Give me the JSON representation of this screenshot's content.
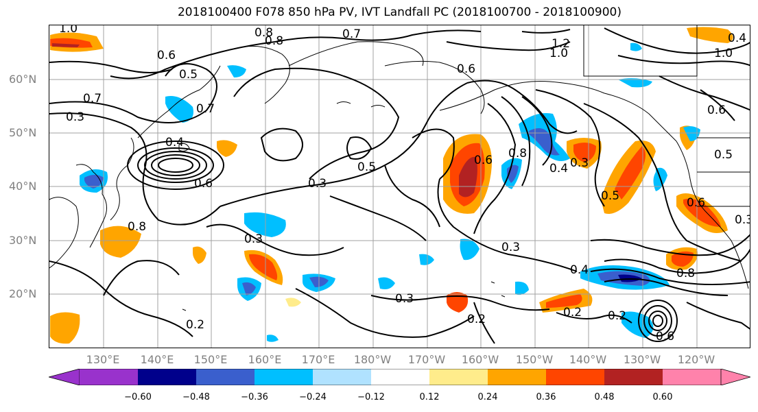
{
  "title": "2018100400 F078 850 hPa PV, IVT Landfall PC (2018100700 - 2018100900)",
  "lat_labels": [
    "60°N",
    "50°N",
    "40°N",
    "30°N",
    "20°N"
  ],
  "lon_labels": [
    "130°E",
    "140°E",
    "150°E",
    "160°E",
    "170°E",
    "180°W",
    "170°W",
    "160°W",
    "150°W",
    "140°W",
    "130°W",
    "120°W"
  ],
  "contour_labels": [
    "1.0",
    "1.0",
    "0.8",
    "0.7",
    "0.8",
    "1.2",
    "1.0",
    "0.6",
    "0.6",
    "0.5",
    "0.7",
    "0.7",
    "0.3",
    "0.4",
    "0.6",
    "0.3",
    "0.5",
    "0.8",
    "0.3",
    "0.5",
    "0.4",
    "0.6",
    "0.3",
    "0.6",
    "0.8",
    "0.5",
    "0.3",
    "0.3",
    "0.4",
    "0.8",
    "0.2",
    "0.2",
    "0.2",
    "0.2",
    "0.6",
    "0.6",
    "0.3",
    "0.4"
  ],
  "colorbar": {
    "colors": [
      "#9932cc",
      "#00008b",
      "#3a5fcd",
      "#00bfff",
      "#b0e2ff",
      "#ffffff",
      "#ffec8b",
      "#ffa500",
      "#ff4500",
      "#b22222",
      "#ff82ab"
    ],
    "tick_labels": [
      "−0.60",
      "−0.48",
      "−0.36",
      "−0.24",
      "−0.12",
      "0.12",
      "0.24",
      "0.36",
      "0.48",
      "0.60"
    ]
  }
}
